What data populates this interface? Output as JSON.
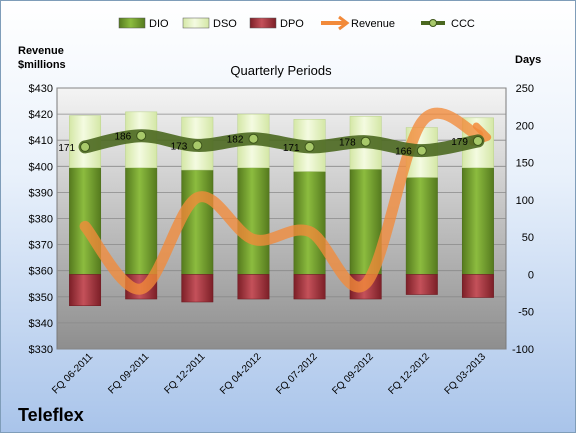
{
  "company": "Teleflex",
  "chart_data": {
    "type": "bar",
    "subtitle": "Quarterly Periods",
    "left_axis_label_line1": "Revenue",
    "left_axis_label_line2": "$millions",
    "right_axis_label": "Days",
    "categories": [
      "FQ 06-2011",
      "FQ 09-2011",
      "FQ 12-2011",
      "FQ 04-2012",
      "FQ 07-2012",
      "FQ 09-2012",
      "FQ 12-2012",
      "FQ 03-2013"
    ],
    "left_ylim": [
      330,
      430
    ],
    "left_ticks": [
      "$330",
      "$340",
      "$350",
      "$360",
      "$370",
      "$380",
      "$390",
      "$400",
      "$410",
      "$420",
      "$430"
    ],
    "right_ylim": [
      -100,
      250
    ],
    "right_ticks": [
      "-100",
      "-50",
      "0",
      "50",
      "100",
      "150",
      "200",
      "250"
    ],
    "series": [
      {
        "name": "DIO",
        "axis": "days",
        "color": "#6e9a2c",
        "values": [
          143,
          143,
          140,
          143,
          138,
          141,
          130,
          143
        ]
      },
      {
        "name": "DSO",
        "axis": "days",
        "color": "#e4f2c4",
        "values": [
          70,
          75,
          71,
          72,
          70,
          71,
          67,
          67
        ]
      },
      {
        "name": "DPO",
        "axis": "days",
        "color": "#a8323a",
        "values": [
          -42,
          -33,
          -37,
          -33,
          -33,
          -33,
          -27,
          -31
        ]
      },
      {
        "name": "Revenue",
        "axis": "revenue",
        "color": "#f28a3a",
        "values": [
          377,
          353,
          388,
          372,
          375,
          355,
          417,
          412
        ]
      },
      {
        "name": "CCC",
        "axis": "days",
        "color": "#4b6820",
        "values": [
          171,
          186,
          173,
          182,
          171,
          178,
          166,
          179
        ]
      }
    ],
    "ccc_labels": [
      "171",
      "186",
      "173",
      "182",
      "171",
      "178",
      "166",
      "179"
    ],
    "legend_items": [
      "DIO",
      "DSO",
      "DPO",
      "Revenue",
      "CCC"
    ],
    "legend_position": "top",
    "grid": true
  }
}
